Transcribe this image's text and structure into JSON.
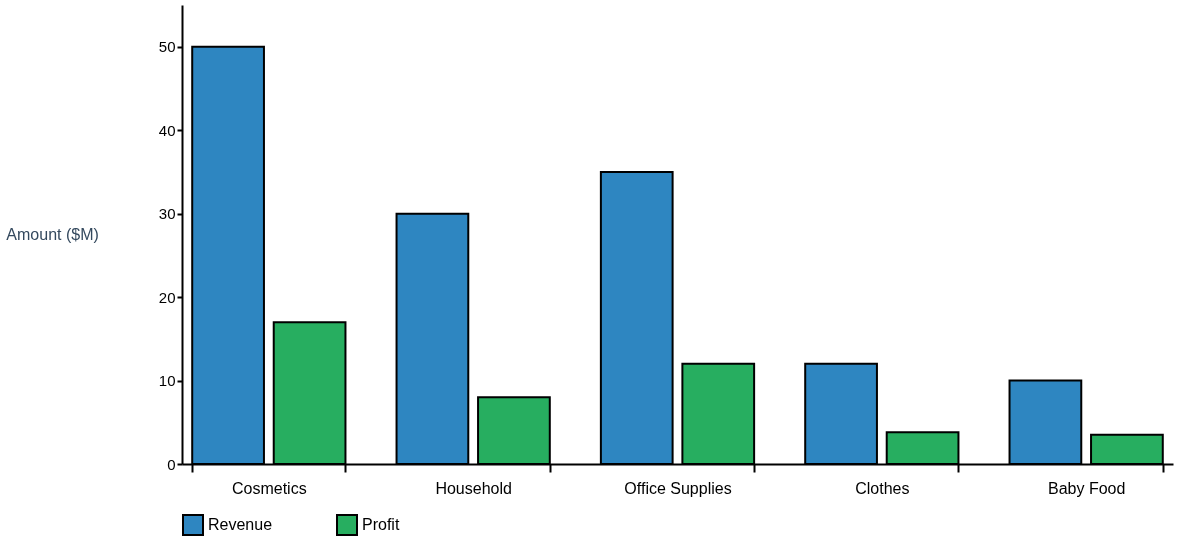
{
  "chart_data": {
    "type": "bar",
    "ylabel": "Amount ($M)",
    "categories": [
      "Cosmetics",
      "Household",
      "Office Supplies",
      "Clothes",
      "Baby Food"
    ],
    "series": [
      {
        "name": "Revenue",
        "color": "#2e86c1",
        "values": [
          50,
          30,
          35,
          12,
          10
        ]
      },
      {
        "name": "Profit",
        "color": "#27ae60",
        "values": [
          17,
          8,
          12,
          3.8,
          3.5
        ]
      }
    ],
    "ylim": [
      0,
      55
    ],
    "yticks": [
      0,
      10,
      20,
      30,
      40,
      50
    ],
    "grid": false,
    "legend": "bottom"
  }
}
